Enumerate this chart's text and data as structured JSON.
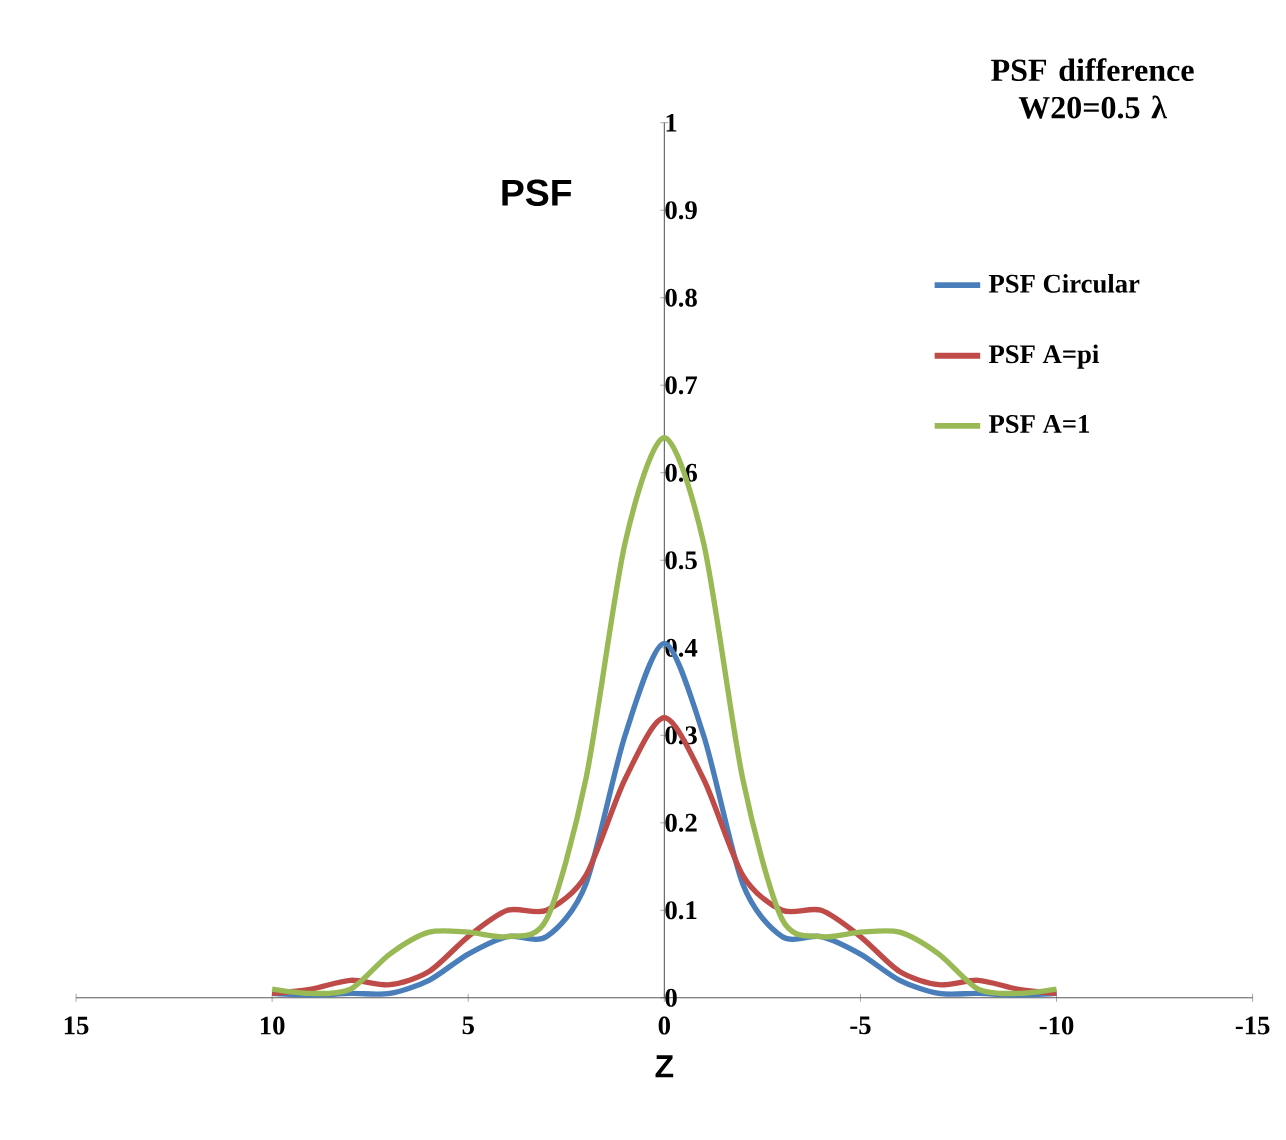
{
  "chart_data": {
    "type": "line",
    "ylabel": "PSF",
    "xlabel": "Z",
    "legend_title": "PSF difference W20=0.5 λ",
    "legend": "top right",
    "grid": false,
    "marker": "none",
    "xlim": [
      15,
      -15
    ],
    "xticks": [
      15,
      10,
      5,
      0,
      -5,
      -10,
      -15
    ],
    "ylim": [
      0,
      1
    ],
    "yticks": [
      0,
      0.1,
      0.2,
      0.3,
      0.4,
      0.5,
      0.6,
      0.7,
      0.8,
      0.9,
      1
    ],
    "x": [
      10,
      9,
      8,
      7,
      6,
      5,
      4,
      3,
      2,
      1,
      0,
      -1,
      -2,
      -3,
      -4,
      -5,
      -6,
      -7,
      -8,
      -9,
      -10
    ],
    "series": [
      {
        "name": "PSF Circular",
        "color": "#4a7ebb",
        "values": [
          0.005,
          0.003,
          0.005,
          0.005,
          0.02,
          0.05,
          0.07,
          0.07,
          0.13,
          0.3,
          0.405,
          0.3,
          0.13,
          0.07,
          0.07,
          0.05,
          0.02,
          0.005,
          0.005,
          0.003,
          0.005
        ]
      },
      {
        "name": "PSF A=pi",
        "color": "#be4b48",
        "values": [
          0.005,
          0.01,
          0.02,
          0.015,
          0.03,
          0.07,
          0.1,
          0.1,
          0.14,
          0.25,
          0.32,
          0.25,
          0.14,
          0.1,
          0.1,
          0.07,
          0.03,
          0.015,
          0.02,
          0.01,
          0.005
        ]
      },
      {
        "name": "PSF A=1",
        "color": "#98b954",
        "values": [
          0.01,
          0.005,
          0.01,
          0.05,
          0.075,
          0.075,
          0.07,
          0.09,
          0.25,
          0.52,
          0.64,
          0.52,
          0.25,
          0.09,
          0.07,
          0.075,
          0.075,
          0.05,
          0.01,
          0.005,
          0.01
        ]
      }
    ]
  }
}
